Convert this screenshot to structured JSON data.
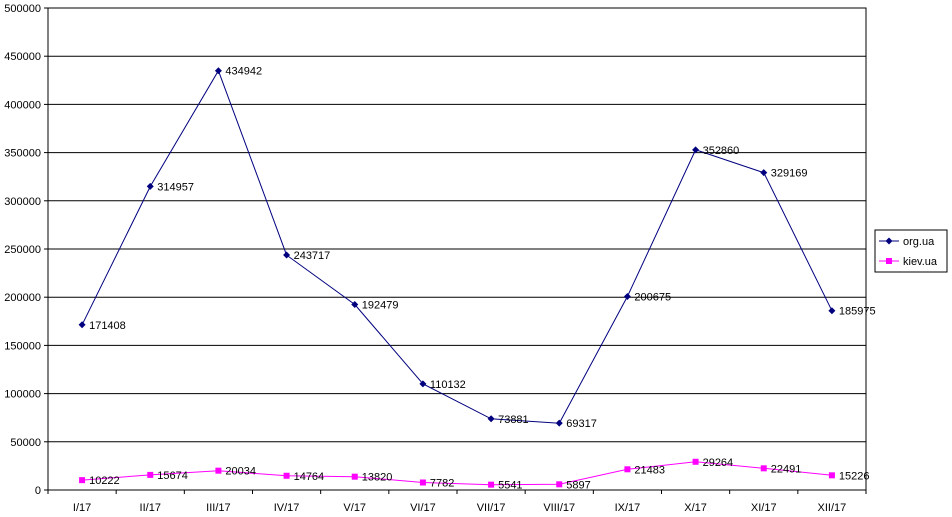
{
  "chart_data": {
    "type": "line",
    "title": "",
    "xlabel": "",
    "ylabel": "",
    "ylim": [
      0,
      500000
    ],
    "ytick_step": 50000,
    "grid": "horizontal",
    "legend_position": "right",
    "categories": [
      "I/17",
      "II/17",
      "III/17",
      "IV/17",
      "V/17",
      "VI/17",
      "VII/17",
      "VIII/17",
      "IX/17",
      "X/17",
      "XI/17",
      "XII/17"
    ],
    "series": [
      {
        "name": "org.ua",
        "color": "#00007f",
        "marker": "diamond",
        "values": [
          171408,
          314957,
          434942,
          243717,
          192479,
          110132,
          73881,
          69317,
          200675,
          352860,
          329169,
          185975
        ]
      },
      {
        "name": "kiev.ua",
        "color": "#ff00ff",
        "marker": "square",
        "values": [
          10222,
          15674,
          20034,
          14764,
          13820,
          7782,
          5541,
          5897,
          21483,
          29264,
          22491,
          15226
        ]
      }
    ]
  }
}
